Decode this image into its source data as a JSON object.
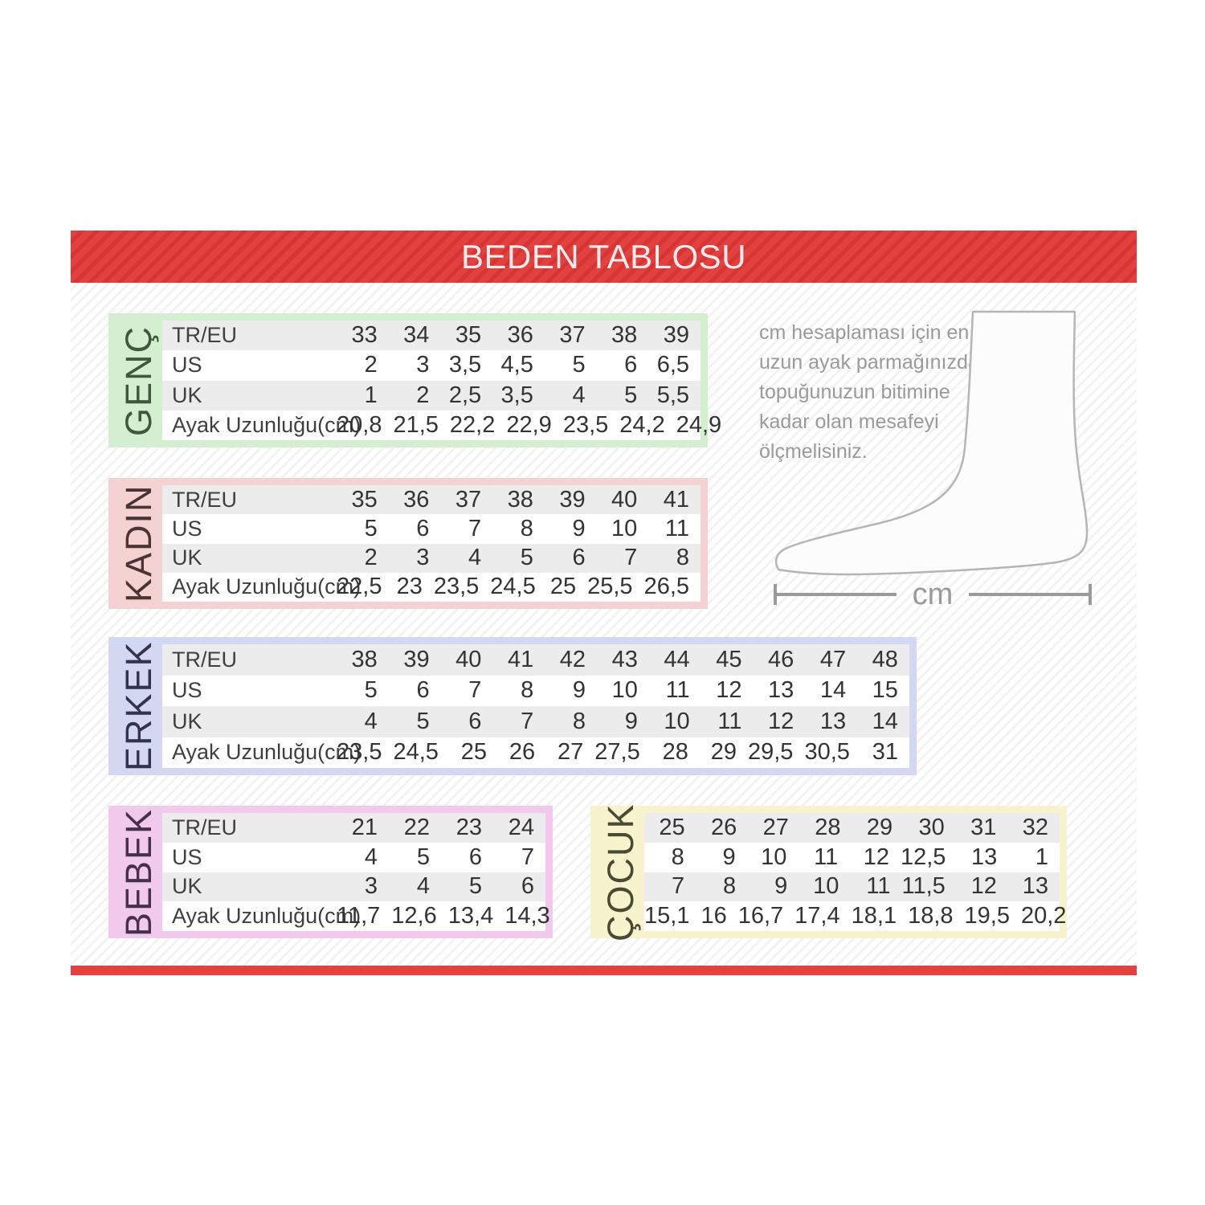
{
  "header": {
    "title": "BEDEN TABLOSU"
  },
  "theme": {
    "red": "#e34040",
    "red_stripe": "#d93434",
    "row_alt": "#ececec",
    "text": "#333333",
    "muted_text": "#9a9a9a",
    "foot_outline": "#b5b5b5"
  },
  "tables": [
    {
      "id": "genc",
      "label": "GENÇ",
      "accent": "#d4efcf",
      "label_color": "#3c5a38",
      "row_labels": [
        "TR/EU",
        "US",
        "UK",
        "Ayak Uzunluğu(cm)"
      ],
      "rows": [
        [
          "33",
          "34",
          "35",
          "36",
          "37",
          "38",
          "39"
        ],
        [
          "2",
          "3",
          "3,5",
          "4,5",
          "5",
          "6",
          "6,5"
        ],
        [
          "1",
          "2",
          "2,5",
          "3,5",
          "4",
          "5",
          "5,5"
        ],
        [
          "20,8",
          "21,5",
          "22,2",
          "22,9",
          "23,5",
          "24,2",
          "24,9"
        ]
      ]
    },
    {
      "id": "kadin",
      "label": "KADIN",
      "accent": "#f5d2d2",
      "label_color": "#4a3434",
      "row_labels": [
        "TR/EU",
        "US",
        "UK",
        "Ayak Uzunluğu(cm)"
      ],
      "rows": [
        [
          "35",
          "36",
          "37",
          "38",
          "39",
          "40",
          "41"
        ],
        [
          "5",
          "6",
          "7",
          "8",
          "9",
          "10",
          "11"
        ],
        [
          "2",
          "3",
          "4",
          "5",
          "6",
          "7",
          "8"
        ],
        [
          "22,5",
          "23",
          "23,5",
          "24,5",
          "25",
          "25,5",
          "26,5"
        ]
      ]
    },
    {
      "id": "erkek",
      "label": "ERKEK",
      "accent": "#d3d7f2",
      "label_color": "#33334d",
      "row_labels": [
        "TR/EU",
        "US",
        "UK",
        "Ayak Uzunluğu(cm)"
      ],
      "rows": [
        [
          "38",
          "39",
          "40",
          "41",
          "42",
          "43",
          "44",
          "45",
          "46",
          "47",
          "48"
        ],
        [
          "5",
          "6",
          "7",
          "8",
          "9",
          "10",
          "11",
          "12",
          "13",
          "14",
          "15"
        ],
        [
          "4",
          "5",
          "6",
          "7",
          "8",
          "9",
          "10",
          "11",
          "12",
          "13",
          "14"
        ],
        [
          "23,5",
          "24,5",
          "25",
          "26",
          "27",
          "27,5",
          "28",
          "29",
          "29,5",
          "30,5",
          "31"
        ]
      ]
    },
    {
      "id": "bebek",
      "label": "BEBEK",
      "accent": "#f1c9ec",
      "label_color": "#46304a",
      "row_labels": [
        "TR/EU",
        "US",
        "UK",
        "Ayak Uzunluğu(cm)"
      ],
      "rows": [
        [
          "21",
          "22",
          "23",
          "24"
        ],
        [
          "4",
          "5",
          "6",
          "7"
        ],
        [
          "3",
          "4",
          "5",
          "6"
        ],
        [
          "11,7",
          "12,6",
          "13,4",
          "14,3"
        ]
      ]
    },
    {
      "id": "cocuk",
      "label": "ÇOCUK",
      "accent": "#f6f3cd",
      "label_color": "#4a4a33",
      "row_labels": null,
      "rows": [
        [
          "25",
          "26",
          "27",
          "28",
          "29",
          "30",
          "31",
          "32"
        ],
        [
          "8",
          "9",
          "10",
          "11",
          "12",
          "12,5",
          "13",
          "1"
        ],
        [
          "7",
          "8",
          "9",
          "10",
          "11",
          "11,5",
          "12",
          "13"
        ],
        [
          "15,1",
          "16",
          "16,7",
          "17,4",
          "18,1",
          "18,8",
          "19,5",
          "20,2"
        ]
      ]
    }
  ],
  "measure": {
    "instruction": "cm hesaplaması için en\nuzun ayak parmağınızdan\ntopuğunuzun bitimine\nkadar olan mesafeyi\nölçmelisiniz.",
    "unit_label": "cm"
  }
}
